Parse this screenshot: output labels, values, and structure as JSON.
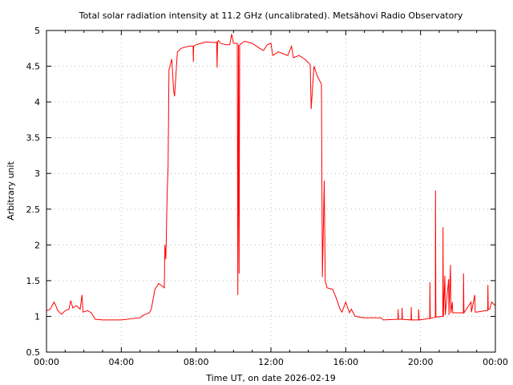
{
  "chart_data": {
    "type": "line",
    "title": "Total solar radiation intensity at 11.2 GHz (uncalibrated). Metsähovi Radio Observatory",
    "xlabel": "Time UT, on date 2026-02-19",
    "ylabel": "Arbitrary unit",
    "xlim": [
      0,
      24
    ],
    "ylim": [
      0.5,
      5
    ],
    "x_unit": "hours UT",
    "x_ticks": [
      0,
      4,
      8,
      12,
      16,
      20,
      24
    ],
    "x_tick_labels": [
      "00:00",
      "04:00",
      "08:00",
      "12:00",
      "16:00",
      "20:00",
      "00:00"
    ],
    "y_ticks": [
      0.5,
      1,
      1.5,
      2,
      2.5,
      3,
      3.5,
      4,
      4.5,
      5
    ],
    "y_tick_labels": [
      "0.5",
      "1",
      "1.5",
      "2",
      "2.5",
      "3",
      "3.5",
      "4",
      "4.5",
      "5"
    ],
    "grid": true,
    "line_color": "#ff0000",
    "series": [
      {
        "name": "Total solar radiation intensity",
        "points": [
          [
            0,
            1.08
          ],
          [
            0.2,
            1.1
          ],
          [
            0.4,
            1.2
          ],
          [
            0.5,
            1.15
          ],
          [
            0.6,
            1.08
          ],
          [
            0.8,
            1.03
          ],
          [
            1.0,
            1.08
          ],
          [
            1.2,
            1.1
          ],
          [
            1.3,
            1.22
          ],
          [
            1.4,
            1.12
          ],
          [
            1.6,
            1.15
          ],
          [
            1.8,
            1.1
          ],
          [
            1.9,
            1.3
          ],
          [
            1.95,
            1.06
          ],
          [
            2.2,
            1.08
          ],
          [
            2.4,
            1.05
          ],
          [
            2.6,
            0.96
          ],
          [
            3,
            0.95
          ],
          [
            4,
            0.95
          ],
          [
            5,
            0.98
          ],
          [
            5.2,
            1.02
          ],
          [
            5.5,
            1.05
          ],
          [
            5.6,
            1.1
          ],
          [
            5.8,
            1.38
          ],
          [
            6.0,
            1.46
          ],
          [
            6.2,
            1.42
          ],
          [
            6.3,
            1.4
          ],
          [
            6.33,
            2.0
          ],
          [
            6.38,
            1.8
          ],
          [
            6.45,
            2.7
          ],
          [
            6.5,
            3.1
          ],
          [
            6.55,
            4.45
          ],
          [
            6.7,
            4.6
          ],
          [
            6.8,
            4.15
          ],
          [
            6.85,
            4.08
          ],
          [
            7.0,
            4.7
          ],
          [
            7.2,
            4.75
          ],
          [
            7.6,
            4.78
          ],
          [
            7.84,
            4.78
          ],
          [
            7.85,
            4.56
          ],
          [
            7.87,
            4.78
          ],
          [
            8,
            4.8
          ],
          [
            8.5,
            4.84
          ],
          [
            9,
            4.83
          ],
          [
            9.1,
            4.84
          ],
          [
            9.12,
            4.48
          ],
          [
            9.15,
            4.84
          ],
          [
            9.2,
            4.86
          ],
          [
            9.3,
            4.82
          ],
          [
            9.6,
            4.8
          ],
          [
            9.8,
            4.8
          ],
          [
            9.9,
            4.95
          ],
          [
            10,
            4.82
          ],
          [
            10.2,
            4.82
          ],
          [
            10.23,
            1.3
          ],
          [
            10.27,
            4.8
          ],
          [
            10.3,
            1.6
          ],
          [
            10.33,
            4.8
          ],
          [
            10.6,
            4.85
          ],
          [
            11,
            4.82
          ],
          [
            11.4,
            4.75
          ],
          [
            11.6,
            4.72
          ],
          [
            11.8,
            4.8
          ],
          [
            12,
            4.82
          ],
          [
            12.1,
            4.65
          ],
          [
            12.4,
            4.7
          ],
          [
            12.6,
            4.68
          ],
          [
            12.9,
            4.65
          ],
          [
            13.1,
            4.78
          ],
          [
            13.2,
            4.62
          ],
          [
            13.5,
            4.65
          ],
          [
            13.8,
            4.6
          ],
          [
            14,
            4.55
          ],
          [
            14.1,
            4.52
          ],
          [
            14.15,
            3.9
          ],
          [
            14.3,
            4.5
          ],
          [
            14.5,
            4.35
          ],
          [
            14.7,
            4.25
          ],
          [
            14.75,
            1.55
          ],
          [
            14.85,
            2.9
          ],
          [
            14.9,
            1.5
          ],
          [
            15,
            1.4
          ],
          [
            15.3,
            1.38
          ],
          [
            15.5,
            1.25
          ],
          [
            15.7,
            1.1
          ],
          [
            15.8,
            1.06
          ],
          [
            16,
            1.2
          ],
          [
            16.2,
            1.05
          ],
          [
            16.3,
            1.1
          ],
          [
            16.5,
            1.0
          ],
          [
            17,
            0.98
          ],
          [
            17.9,
            0.98
          ],
          [
            18,
            0.95
          ],
          [
            18.79,
            0.96
          ],
          [
            18.8,
            1.1
          ],
          [
            18.82,
            0.96
          ],
          [
            19,
            0.96
          ],
          [
            19.01,
            1.12
          ],
          [
            19.03,
            0.96
          ],
          [
            19.49,
            0.95
          ],
          [
            19.5,
            1.13
          ],
          [
            19.52,
            0.95
          ],
          [
            19.89,
            0.95
          ],
          [
            19.9,
            1.1
          ],
          [
            19.92,
            0.95
          ],
          [
            20.49,
            0.97
          ],
          [
            20.5,
            1.48
          ],
          [
            20.52,
            0.97
          ],
          [
            20.79,
            0.99
          ],
          [
            20.8,
            2.76
          ],
          [
            20.82,
            0.99
          ],
          [
            21.19,
            1.0
          ],
          [
            21.2,
            2.25
          ],
          [
            21.22,
            1.0
          ],
          [
            21.3,
            1.57
          ],
          [
            21.32,
            1.02
          ],
          [
            21.5,
            1.52
          ],
          [
            21.52,
            1.02
          ],
          [
            21.6,
            1.72
          ],
          [
            21.62,
            1.05
          ],
          [
            21.7,
            1.2
          ],
          [
            21.72,
            1.05
          ],
          [
            22,
            1.05
          ],
          [
            22.29,
            1.05
          ],
          [
            22.3,
            1.6
          ],
          [
            22.32,
            1.05
          ],
          [
            22.7,
            1.2
          ],
          [
            22.72,
            1.06
          ],
          [
            22.9,
            1.3
          ],
          [
            22.92,
            1.06
          ],
          [
            23,
            1.06
          ],
          [
            23.5,
            1.08
          ],
          [
            23.59,
            1.08
          ],
          [
            23.6,
            1.44
          ],
          [
            23.62,
            1.1
          ],
          [
            23.7,
            1.1
          ],
          [
            23.8,
            1.2
          ],
          [
            24,
            1.15
          ]
        ]
      }
    ]
  }
}
